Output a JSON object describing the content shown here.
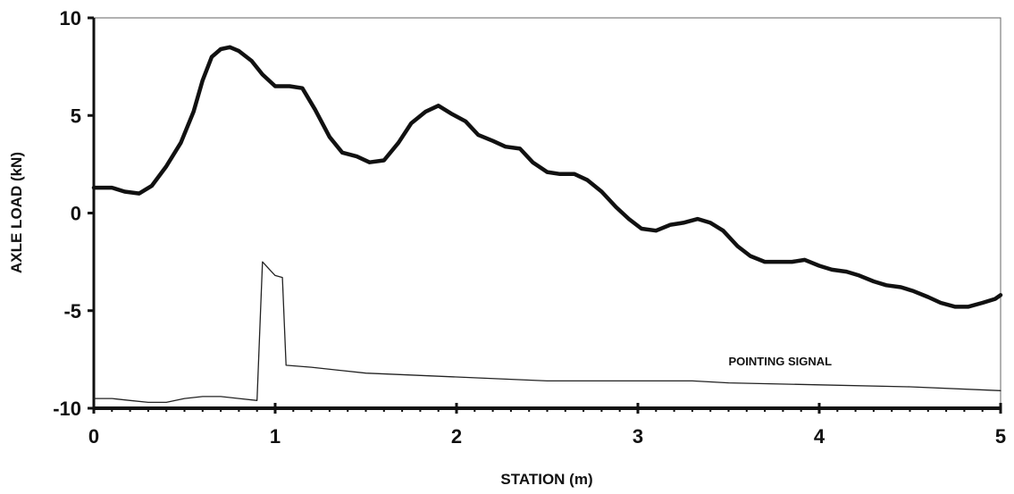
{
  "chart_data": {
    "type": "line",
    "xlabel": "STATION (m)",
    "ylabel": "AXLE LOAD (kN)",
    "xlim": [
      0,
      5
    ],
    "ylim": [
      -10,
      10
    ],
    "x_ticks": [
      0,
      1,
      2,
      3,
      4,
      5
    ],
    "y_ticks": [
      -10,
      -5,
      0,
      5,
      10
    ],
    "grid": false,
    "series": [
      {
        "name": "",
        "line": "thick",
        "color": "#111111",
        "points": [
          [
            0.0,
            1.3
          ],
          [
            0.1,
            1.3
          ],
          [
            0.17,
            1.1
          ],
          [
            0.25,
            1.0
          ],
          [
            0.32,
            1.4
          ],
          [
            0.4,
            2.4
          ],
          [
            0.48,
            3.6
          ],
          [
            0.55,
            5.2
          ],
          [
            0.6,
            6.8
          ],
          [
            0.65,
            8.0
          ],
          [
            0.7,
            8.4
          ],
          [
            0.75,
            8.5
          ],
          [
            0.8,
            8.3
          ],
          [
            0.87,
            7.8
          ],
          [
            0.93,
            7.1
          ],
          [
            1.0,
            6.5
          ],
          [
            1.08,
            6.5
          ],
          [
            1.15,
            6.4
          ],
          [
            1.22,
            5.3
          ],
          [
            1.3,
            3.9
          ],
          [
            1.37,
            3.1
          ],
          [
            1.45,
            2.9
          ],
          [
            1.52,
            2.6
          ],
          [
            1.6,
            2.7
          ],
          [
            1.68,
            3.6
          ],
          [
            1.75,
            4.6
          ],
          [
            1.83,
            5.2
          ],
          [
            1.9,
            5.5
          ],
          [
            1.97,
            5.1
          ],
          [
            2.05,
            4.7
          ],
          [
            2.12,
            4.0
          ],
          [
            2.2,
            3.7
          ],
          [
            2.27,
            3.4
          ],
          [
            2.35,
            3.3
          ],
          [
            2.42,
            2.6
          ],
          [
            2.5,
            2.1
          ],
          [
            2.57,
            2.0
          ],
          [
            2.65,
            2.0
          ],
          [
            2.72,
            1.7
          ],
          [
            2.8,
            1.1
          ],
          [
            2.88,
            0.3
          ],
          [
            2.95,
            -0.3
          ],
          [
            3.02,
            -0.8
          ],
          [
            3.1,
            -0.9
          ],
          [
            3.18,
            -0.6
          ],
          [
            3.25,
            -0.5
          ],
          [
            3.33,
            -0.3
          ],
          [
            3.4,
            -0.5
          ],
          [
            3.47,
            -0.9
          ],
          [
            3.55,
            -1.7
          ],
          [
            3.62,
            -2.2
          ],
          [
            3.7,
            -2.5
          ],
          [
            3.77,
            -2.5
          ],
          [
            3.85,
            -2.5
          ],
          [
            3.92,
            -2.4
          ],
          [
            4.0,
            -2.7
          ],
          [
            4.07,
            -2.9
          ],
          [
            4.15,
            -3.0
          ],
          [
            4.22,
            -3.2
          ],
          [
            4.3,
            -3.5
          ],
          [
            4.37,
            -3.7
          ],
          [
            4.45,
            -3.8
          ],
          [
            4.52,
            -4.0
          ],
          [
            4.6,
            -4.3
          ],
          [
            4.67,
            -4.6
          ],
          [
            4.75,
            -4.8
          ],
          [
            4.82,
            -4.8
          ],
          [
            4.9,
            -4.6
          ],
          [
            4.97,
            -4.4
          ],
          [
            5.0,
            -4.2
          ]
        ]
      },
      {
        "name": "POINTING SIGNAL",
        "line": "thin",
        "color": "#222222",
        "points": [
          [
            0.0,
            -9.5
          ],
          [
            0.1,
            -9.5
          ],
          [
            0.2,
            -9.6
          ],
          [
            0.3,
            -9.7
          ],
          [
            0.4,
            -9.7
          ],
          [
            0.5,
            -9.5
          ],
          [
            0.6,
            -9.4
          ],
          [
            0.7,
            -9.4
          ],
          [
            0.8,
            -9.5
          ],
          [
            0.9,
            -9.6
          ],
          [
            0.93,
            -2.5
          ],
          [
            0.97,
            -2.9
          ],
          [
            1.0,
            -3.2
          ],
          [
            1.04,
            -3.3
          ],
          [
            1.06,
            -7.8
          ],
          [
            1.2,
            -7.9
          ],
          [
            1.5,
            -8.2
          ],
          [
            2.0,
            -8.4
          ],
          [
            2.5,
            -8.6
          ],
          [
            3.0,
            -8.6
          ],
          [
            3.3,
            -8.6
          ],
          [
            3.5,
            -8.7
          ],
          [
            4.0,
            -8.8
          ],
          [
            4.5,
            -8.9
          ],
          [
            5.0,
            -9.1
          ]
        ]
      }
    ],
    "annotations": [
      {
        "text": "POINTING SIGNAL",
        "x": 3.5,
        "y": -7.8
      }
    ]
  }
}
